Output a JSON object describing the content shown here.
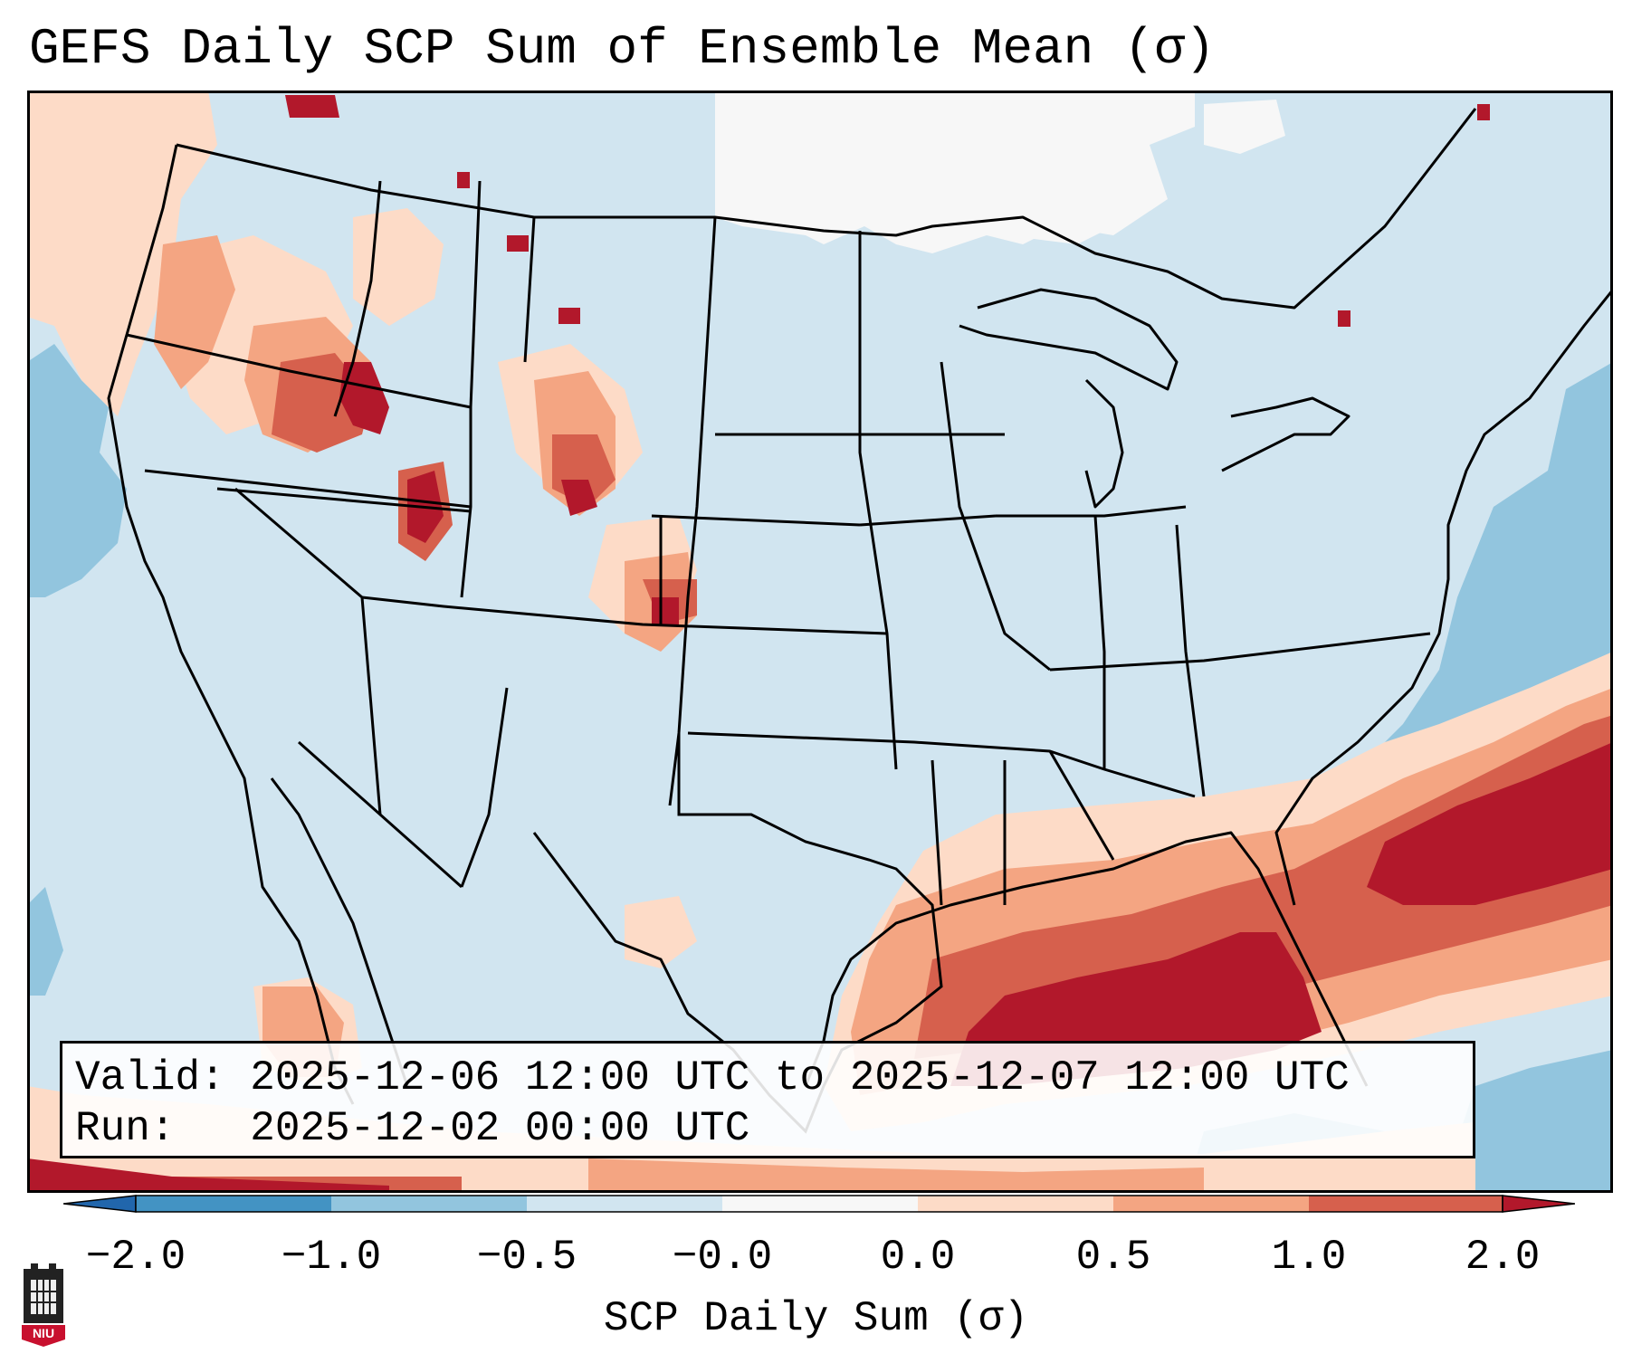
{
  "title": "GEFS Daily SCP Sum of Ensemble Mean (σ)",
  "info": {
    "valid_line": "Valid: 2025-12-06 12:00 UTC to 2025-12-07 12:00 UTC",
    "run_line": "Run:   2025-12-02 00:00 UTC"
  },
  "colorbar": {
    "label": "SCP Daily Sum (σ)",
    "ticks": [
      "−2.0",
      "−1.0",
      "−0.5",
      "−0.0",
      "0.0",
      "0.5",
      "1.0",
      "2.0"
    ],
    "colors": {
      "below_min": "#2166ac",
      "n2_n1": "#4393c3",
      "n1_n05": "#92c5de",
      "n05_n0": "#d1e5f0",
      "zero_band": "#f7f7f7",
      "p0_p05": "#fddbc7",
      "p05_p1": "#f4a582",
      "p1_p2": "#d6604d",
      "above_max": "#b2182b"
    }
  },
  "logo": {
    "text": "NIU",
    "color": "#c8102e"
  },
  "map_background": "#d1e5f0"
}
